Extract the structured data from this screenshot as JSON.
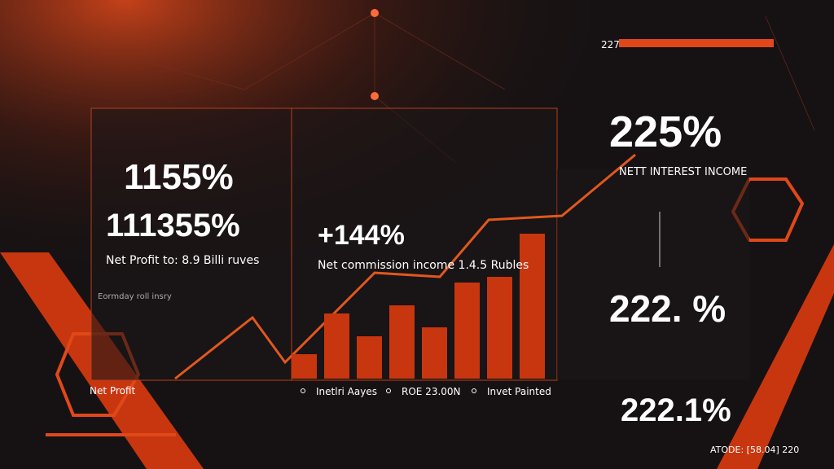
{
  "header": {
    "top_code": "227"
  },
  "left_panel": {
    "headline": "1155%",
    "subheadline": "111355%",
    "caption": "Net Profit to: 8.9 Billi ruves",
    "note": "Eormday roll insry",
    "badge": "Net Profit"
  },
  "center_panel": {
    "headline": "+144%",
    "caption": "Net commission income 1.4.5 Rubles",
    "legend": [
      "Inetlri Aayes",
      "ROE 23.00N",
      "Invet Painted"
    ]
  },
  "right_panel": {
    "headline": "225%",
    "caption": "NETT INTEREST INCOME",
    "second": "222. %",
    "third": "222.1%"
  },
  "footer": {
    "code": "ATODE: [58.04] 220"
  },
  "chart_data": {
    "type": "bar",
    "values": [
      30,
      80,
      52,
      90,
      63,
      118,
      125,
      178
    ],
    "color": "#c8360f",
    "ylim": [
      0,
      200
    ]
  }
}
